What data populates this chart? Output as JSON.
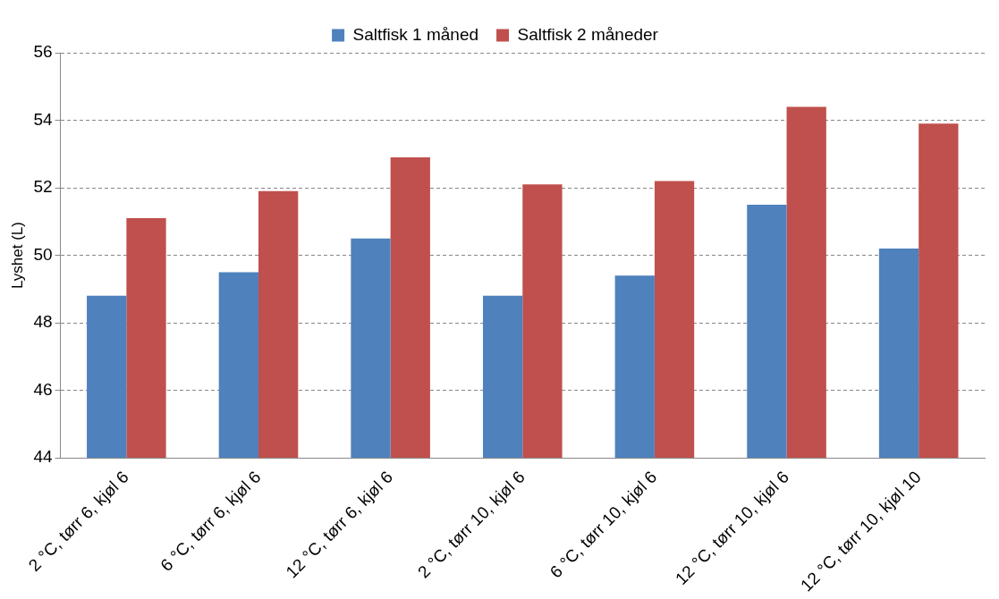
{
  "chart_data": {
    "type": "bar",
    "ylabel": "Lyshet (L)",
    "categories": [
      "2 °C, tørr 6, kjøl 6",
      "6 °C, tørr 6, kjøl 6",
      "12 °C, tørr 6, kjøl 6",
      "2 °C, tørr 10, kjøl 6",
      "6 °C, tørr 10, kjøl 6",
      "12 °C, tørr 10, kjøl 6",
      "12 °C, tørr 10, kjøl 10"
    ],
    "series": [
      {
        "name": "Saltfisk 1 måned",
        "color": "#4f81bd",
        "values": [
          48.8,
          49.5,
          50.5,
          48.8,
          49.4,
          51.5,
          50.2
        ]
      },
      {
        "name": "Saltfisk 2 måneder",
        "color": "#c0504d",
        "values": [
          51.1,
          51.9,
          52.9,
          52.1,
          52.2,
          54.4,
          53.9
        ]
      }
    ],
    "ylim": [
      44,
      56
    ],
    "yticks": [
      44,
      46,
      48,
      50,
      52,
      54,
      56
    ],
    "grid": "y",
    "legend": "top"
  }
}
